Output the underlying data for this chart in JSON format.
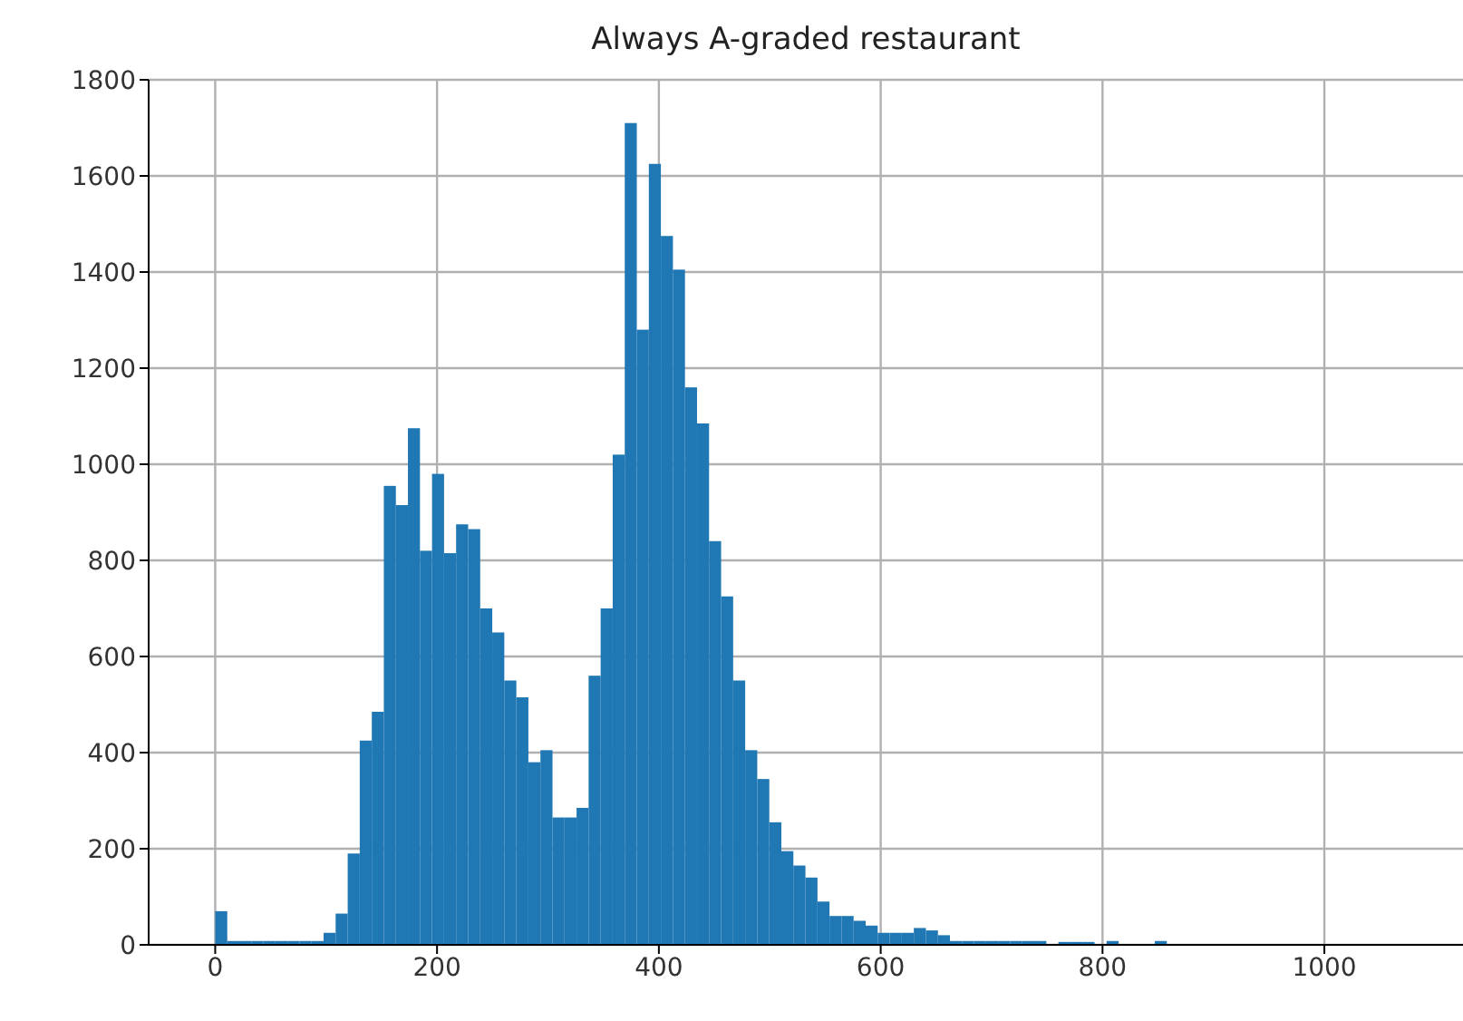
{
  "chart_data": {
    "type": "histogram",
    "title": "Always A-graded restaurant",
    "bins": [
      0,
      10.86,
      21.72,
      32.58,
      43.44,
      54.3,
      65.16,
      76.02,
      86.88,
      97.74,
      108.6,
      119.46,
      130.32,
      141.18,
      152.04,
      162.9,
      173.76,
      184.62,
      195.48,
      206.34,
      217.2,
      228.06,
      238.92,
      249.78,
      260.64,
      271.5,
      282.36,
      293.22,
      304.08,
      314.94,
      325.8,
      336.66,
      347.52,
      358.38,
      369.24,
      380.1,
      390.96,
      401.82,
      412.68,
      423.54,
      434.4,
      445.26,
      456.12,
      466.98,
      477.84,
      488.7,
      499.56,
      510.42,
      521.28,
      532.14,
      543,
      553.86,
      564.72,
      575.58,
      586.44,
      597.3,
      608.16,
      619.02,
      629.88,
      640.74,
      651.6,
      662.46,
      673.32,
      684.18,
      695.04,
      705.9,
      716.76,
      727.62,
      738.48,
      749.34,
      760.2,
      771.06,
      781.92,
      792.78,
      803.64,
      814.5,
      825.36,
      836.22,
      847.08,
      857.94
    ],
    "values": [
      70,
      8,
      8,
      8,
      8,
      8,
      8,
      8,
      8,
      25,
      65,
      190,
      425,
      485,
      955,
      915,
      1075,
      820,
      980,
      815,
      875,
      865,
      700,
      650,
      550,
      515,
      380,
      405,
      265,
      265,
      285,
      560,
      700,
      1020,
      1710,
      1280,
      1625,
      1475,
      1405,
      1160,
      1085,
      840,
      725,
      550,
      405,
      345,
      255,
      195,
      165,
      140,
      90,
      60,
      60,
      50,
      40,
      25,
      25,
      25,
      35,
      30,
      20,
      8,
      8,
      8,
      8,
      8,
      8,
      8,
      8,
      0,
      6,
      6,
      6,
      0,
      8,
      0,
      0,
      0,
      8
    ],
    "color": "#1f77b4",
    "xlim": [
      -60,
      1125
    ],
    "xticks": [
      0,
      200,
      400,
      600,
      800,
      1000
    ],
    "ylim": [
      0,
      1800
    ],
    "yticks": [
      0,
      200,
      400,
      600,
      800,
      1000,
      1200,
      1400,
      1600,
      1800
    ],
    "grid": true
  }
}
